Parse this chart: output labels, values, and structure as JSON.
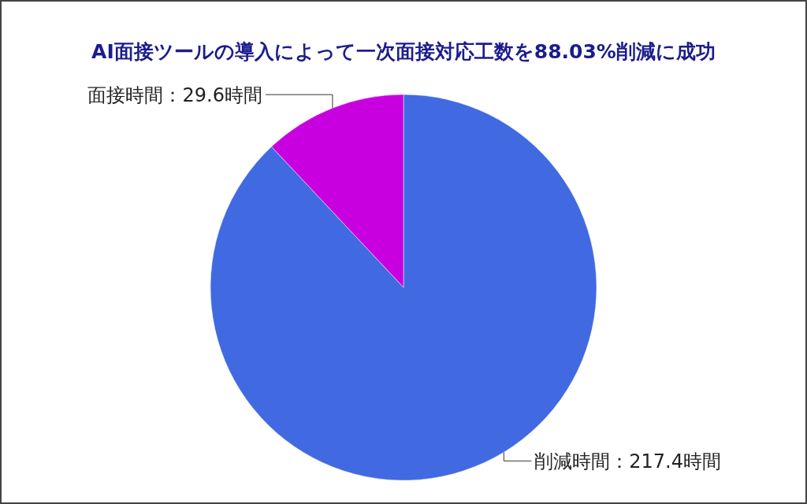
{
  "chart_data": {
    "type": "pie",
    "title": "AI面接ツールの導入によって一次面接対応工数を88.03%削減に成功",
    "categories": [
      "削減時間",
      "面接時間"
    ],
    "values": [
      217.4,
      29.6
    ],
    "colors": [
      "#4169e1",
      "#c800e0"
    ],
    "value_labels": [
      "：217.4時間",
      "：29.6時間"
    ]
  }
}
